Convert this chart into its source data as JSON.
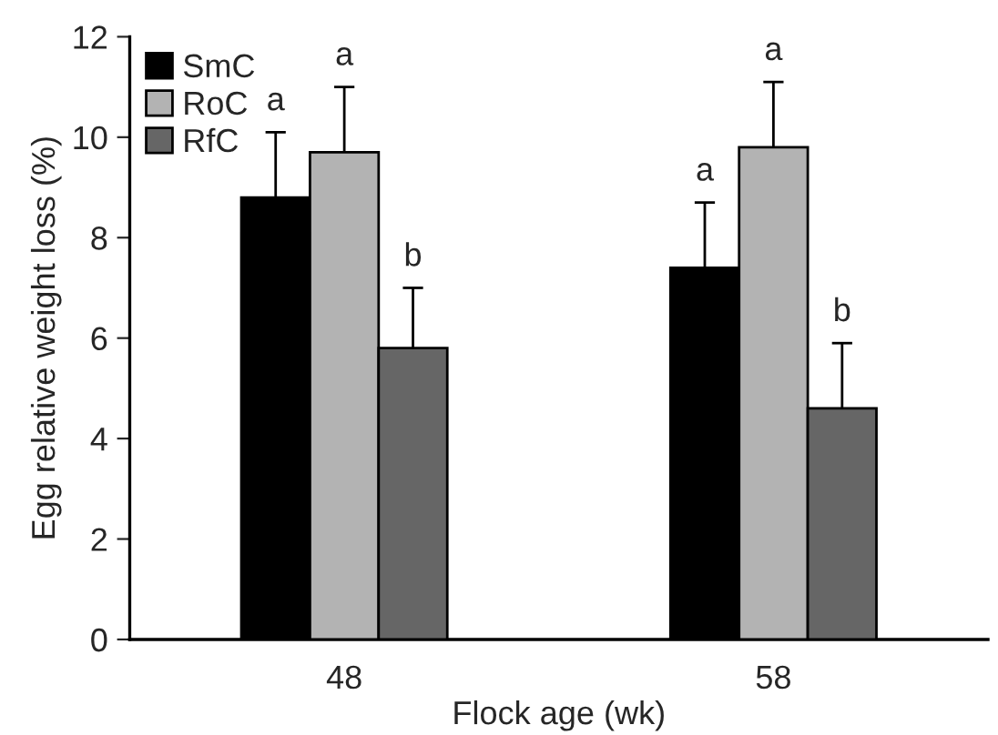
{
  "chart_data": {
    "type": "bar",
    "xlabel": "Flock age (wk)",
    "ylabel": "Egg relative weight loss (%)",
    "categories": [
      "48",
      "58"
    ],
    "series": [
      {
        "name": "SmC",
        "color": "#000000",
        "values": [
          8.8,
          7.4
        ],
        "errors": [
          1.3,
          1.3
        ],
        "value_labels": [
          "a",
          "a"
        ]
      },
      {
        "name": "RoC",
        "color": "#b3b3b3",
        "values": [
          9.7,
          9.8
        ],
        "errors": [
          1.3,
          1.3
        ],
        "value_labels": [
          "a",
          "a"
        ]
      },
      {
        "name": "RfC",
        "color": "#666666",
        "values": [
          5.8,
          4.6
        ],
        "errors": [
          1.2,
          1.3
        ],
        "value_labels": [
          "b",
          "b"
        ]
      }
    ],
    "ylim": [
      0,
      12
    ],
    "yticks": [
      0,
      2,
      4,
      6,
      8,
      10,
      12
    ],
    "grid": false,
    "legend": "top left"
  }
}
